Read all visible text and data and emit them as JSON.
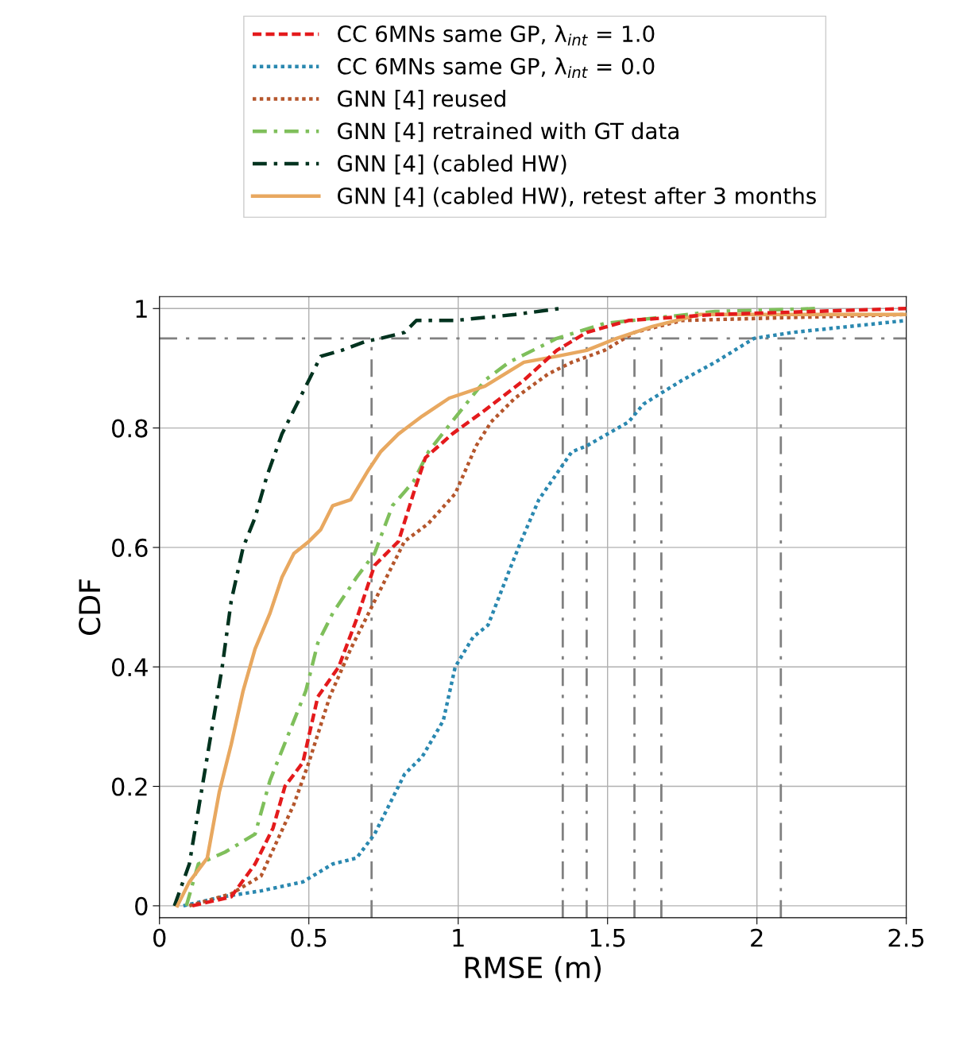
{
  "chart_data": {
    "type": "line",
    "xlabel": "RMSE (m)",
    "ylabel": "CDF",
    "xlim": [
      0,
      2.5
    ],
    "ylim": [
      -0.02,
      1.02
    ],
    "xticks": [
      0,
      0.5,
      1,
      1.5,
      2,
      2.5
    ],
    "yticks": [
      0,
      0.2,
      0.4,
      0.6,
      0.8,
      1
    ],
    "grid": true,
    "legend": "top",
    "ref_lines": [
      {
        "axis": "y",
        "value": 0.95,
        "label": null,
        "color": "#808080",
        "line_style": "dashdot"
      },
      {
        "axis": "x",
        "value": 0.71,
        "label": null,
        "color": "#808080",
        "line_style": "dashdot"
      },
      {
        "axis": "x",
        "value": 1.35,
        "label": null,
        "color": "#808080",
        "line_style": "dashdot"
      },
      {
        "axis": "x",
        "value": 1.43,
        "label": null,
        "color": "#808080",
        "line_style": "dashdot"
      },
      {
        "axis": "x",
        "value": 1.59,
        "label": null,
        "color": "#808080",
        "line_style": "dashdot"
      },
      {
        "axis": "x",
        "value": 1.68,
        "label": null,
        "color": "#808080",
        "line_style": "dashdot"
      },
      {
        "axis": "x",
        "value": 2.08,
        "label": null,
        "color": "#808080",
        "line_style": "dashdot"
      }
    ],
    "series": [
      {
        "name": "CC 6MNs same GP, λ$_{int}$ = 1.0",
        "color": "#e41a1c",
        "line_style": "dashed",
        "x": [
          0.11,
          0.24,
          0.32,
          0.38,
          0.42,
          0.48,
          0.53,
          0.6,
          0.66,
          0.72,
          0.8,
          0.85,
          0.89,
          0.98,
          1.09,
          1.22,
          1.33,
          1.43,
          1.57,
          1.86,
          2.5
        ],
        "values": [
          0,
          0.015,
          0.07,
          0.13,
          0.2,
          0.24,
          0.35,
          0.4,
          0.48,
          0.57,
          0.61,
          0.69,
          0.75,
          0.79,
          0.83,
          0.88,
          0.93,
          0.96,
          0.98,
          0.99,
          1.0
        ]
      },
      {
        "name": "CC 6MNs same GP, λ$_{int}$ = 0.0",
        "color": "#2a88b0",
        "line_style": "dotted",
        "x": [
          0.08,
          0.21,
          0.34,
          0.48,
          0.58,
          0.66,
          0.72,
          0.77,
          0.82,
          0.88,
          0.95,
          0.99,
          1.05,
          1.1,
          1.17,
          1.21,
          1.27,
          1.38,
          1.43,
          1.57,
          1.62,
          1.75,
          1.86,
          1.99,
          2.12,
          2.5
        ],
        "values": [
          0,
          0.015,
          0.025,
          0.04,
          0.07,
          0.08,
          0.12,
          0.17,
          0.22,
          0.25,
          0.31,
          0.4,
          0.45,
          0.47,
          0.56,
          0.61,
          0.68,
          0.76,
          0.77,
          0.81,
          0.84,
          0.88,
          0.91,
          0.95,
          0.96,
          0.98
        ]
      },
      {
        "name": "GNN [4] reused",
        "color": "#b5562c",
        "line_style": "dotted",
        "x": [
          0.1,
          0.24,
          0.34,
          0.45,
          0.5,
          0.57,
          0.64,
          0.72,
          0.77,
          0.82,
          0.9,
          0.99,
          1.06,
          1.11,
          1.19,
          1.3,
          1.38,
          1.49,
          1.59,
          1.75,
          2.12,
          2.5
        ],
        "values": [
          0,
          0.02,
          0.05,
          0.17,
          0.24,
          0.35,
          0.43,
          0.51,
          0.56,
          0.61,
          0.64,
          0.69,
          0.77,
          0.81,
          0.85,
          0.89,
          0.91,
          0.93,
          0.96,
          0.98,
          0.985,
          0.99
        ]
      },
      {
        "name": "GNN [4] retrained with GT data",
        "color": "#7fbf5b",
        "line_style": "dashdot",
        "x": [
          0.09,
          0.13,
          0.22,
          0.32,
          0.37,
          0.45,
          0.49,
          0.53,
          0.58,
          0.66,
          0.72,
          0.78,
          0.85,
          0.9,
          1.01,
          1.09,
          1.17,
          1.33,
          1.49,
          1.86,
          2.2
        ],
        "values": [
          0,
          0.07,
          0.09,
          0.12,
          0.21,
          0.31,
          0.36,
          0.44,
          0.49,
          0.55,
          0.59,
          0.67,
          0.71,
          0.76,
          0.83,
          0.88,
          0.91,
          0.95,
          0.975,
          0.995,
          1.0
        ]
      },
      {
        "name": "GNN [4] (cabled HW)",
        "color": "#00331f",
        "line_style": "dashdot",
        "x": [
          0.05,
          0.1,
          0.14,
          0.18,
          0.21,
          0.24,
          0.28,
          0.32,
          0.36,
          0.41,
          0.46,
          0.5,
          0.54,
          0.61,
          0.69,
          0.74,
          0.82,
          0.86,
          0.99,
          1.19,
          1.34
        ],
        "values": [
          0,
          0.07,
          0.19,
          0.31,
          0.4,
          0.51,
          0.6,
          0.65,
          0.72,
          0.79,
          0.84,
          0.88,
          0.92,
          0.93,
          0.945,
          0.95,
          0.96,
          0.98,
          0.98,
          0.99,
          1.0
        ]
      },
      {
        "name": "GNN [4] (cabled HW), retest after 3 months",
        "color": "#e8a860",
        "line_style": "solid",
        "x": [
          0.06,
          0.1,
          0.16,
          0.2,
          0.24,
          0.28,
          0.32,
          0.37,
          0.41,
          0.45,
          0.5,
          0.54,
          0.58,
          0.64,
          0.7,
          0.74,
          0.8,
          0.88,
          0.97,
          1.09,
          1.22,
          1.33,
          1.43,
          1.53,
          1.65,
          1.81,
          2.12,
          2.5
        ],
        "values": [
          0,
          0.04,
          0.08,
          0.19,
          0.27,
          0.36,
          0.43,
          0.49,
          0.55,
          0.59,
          0.61,
          0.63,
          0.67,
          0.68,
          0.73,
          0.76,
          0.79,
          0.82,
          0.85,
          0.87,
          0.91,
          0.92,
          0.93,
          0.95,
          0.97,
          0.99,
          0.99,
          0.99
        ]
      }
    ]
  }
}
